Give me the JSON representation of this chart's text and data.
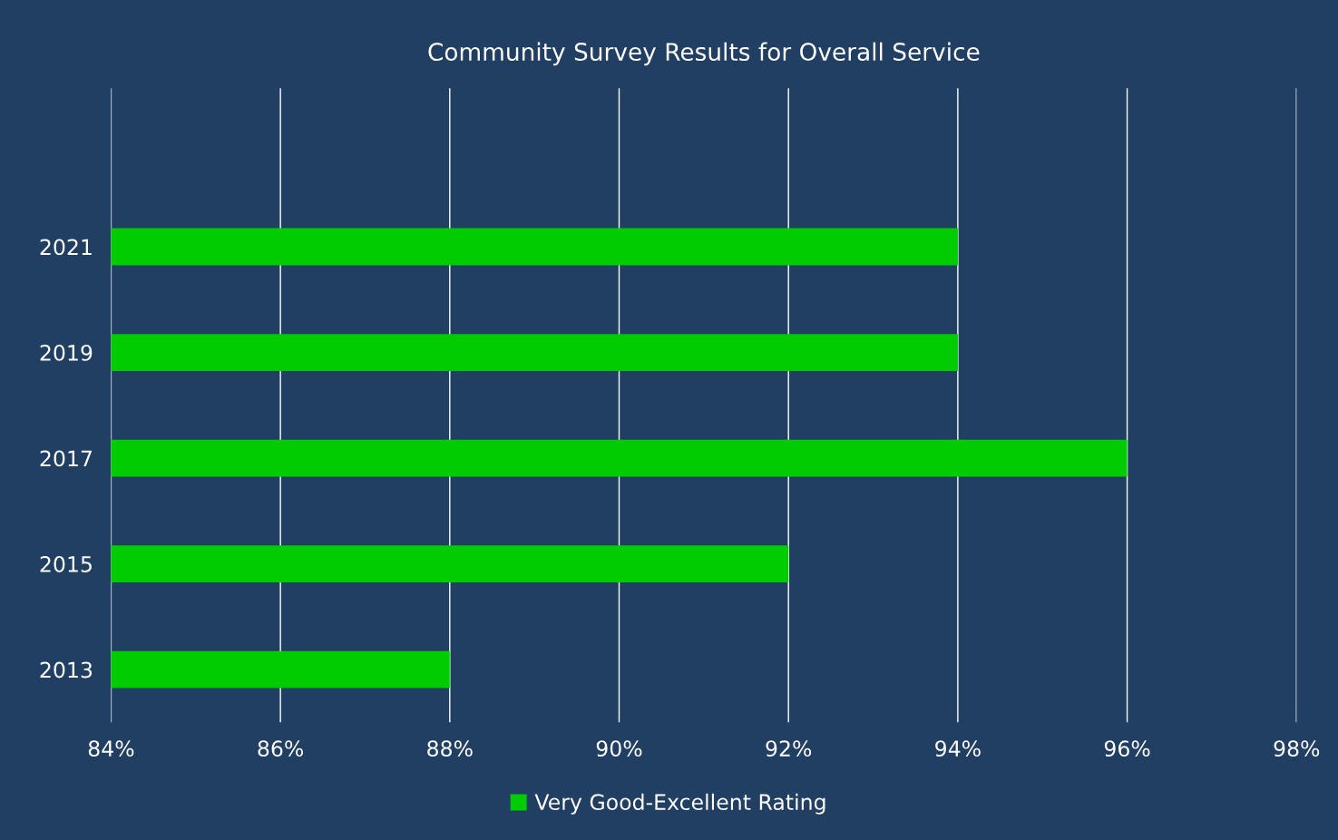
{
  "chart_data": {
    "type": "bar",
    "orientation": "horizontal",
    "title": "Community Survey Results for Overall Service",
    "categories": [
      "2021",
      "2019",
      "2017",
      "2015",
      "2013"
    ],
    "series": [
      {
        "name": "Very Good-Excellent Rating",
        "color": "#00cc00",
        "values": [
          94,
          94,
          96,
          92,
          88
        ]
      }
    ],
    "xlim": [
      84,
      98
    ],
    "xticks": [
      {
        "value": 84,
        "label": "84%"
      },
      {
        "value": 86,
        "label": "86%"
      },
      {
        "value": 88,
        "label": "88%"
      },
      {
        "value": 90,
        "label": "90%"
      },
      {
        "value": 92,
        "label": "92%"
      },
      {
        "value": 94,
        "label": "94%"
      },
      {
        "value": 96,
        "label": "96%"
      },
      {
        "value": 98,
        "label": "98%"
      }
    ],
    "grid": "x",
    "legend": "bottom"
  }
}
